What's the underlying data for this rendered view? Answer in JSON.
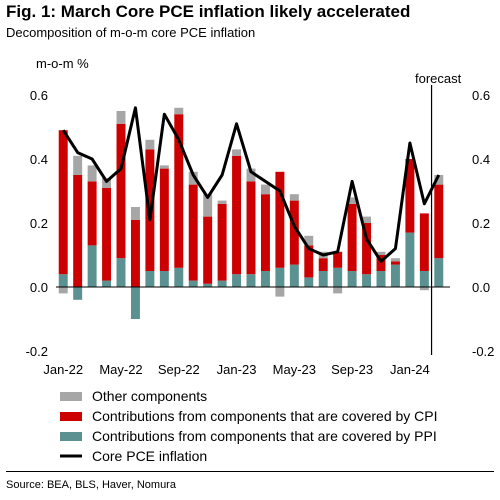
{
  "title": "Fig. 1: March Core PCE inflation likely accelerated",
  "subtitle": "Decomposition of m-o-m core PCE inflation",
  "source": "Source: BEA, BLS, Haver, Nomura",
  "colors": {
    "other": "#a6a6a6",
    "cpi": "#cc0000",
    "ppi": "#5b9191",
    "line": "#000000"
  },
  "chart_data": {
    "type": "bar",
    "stacked": true,
    "ylabel": "m-o-m %",
    "ylim": [
      -0.2,
      0.6
    ],
    "yticks": [
      "-0.2",
      "0.0",
      "0.2",
      "0.4",
      "0.6"
    ],
    "categories": [
      "Jan-22",
      "Feb-22",
      "Mar-22",
      "Apr-22",
      "May-22",
      "Jun-22",
      "Jul-22",
      "Aug-22",
      "Sep-22",
      "Oct-22",
      "Nov-22",
      "Dec-22",
      "Jan-23",
      "Feb-23",
      "Mar-23",
      "Apr-23",
      "May-23",
      "Jun-23",
      "Jul-23",
      "Aug-23",
      "Sep-23",
      "Oct-23",
      "Nov-23",
      "Dec-23",
      "Jan-24",
      "Feb-24",
      "Mar-24"
    ],
    "xtick_labels": [
      "Jan-22",
      "May-22",
      "Sep-22",
      "Jan-23",
      "May-23",
      "Sep-23",
      "Jan-24"
    ],
    "series": [
      {
        "name": "Other components",
        "kind": "bar",
        "values": [
          -0.02,
          0.06,
          0.05,
          0.03,
          0.04,
          0.04,
          0.03,
          0.01,
          0.02,
          0.04,
          0.07,
          0.01,
          0.02,
          0.04,
          0.03,
          -0.03,
          0.02,
          0.03,
          0.02,
          -0.02,
          0.02,
          0.02,
          0.01,
          0.01,
          0.0,
          -0.01,
          0.03
        ]
      },
      {
        "name": "Contributions from components that are covered by CPI",
        "kind": "bar",
        "values": [
          0.45,
          0.35,
          0.2,
          0.29,
          0.42,
          0.21,
          0.38,
          0.32,
          0.48,
          0.3,
          0.21,
          0.24,
          0.37,
          0.29,
          0.24,
          0.3,
          0.2,
          0.1,
          0.04,
          0.05,
          0.21,
          0.16,
          0.05,
          0.01,
          0.23,
          0.18,
          0.23
        ]
      },
      {
        "name": "Contributions from components that are covered by PPI",
        "kind": "bar",
        "values": [
          0.04,
          -0.04,
          0.13,
          0.02,
          0.09,
          -0.1,
          0.05,
          0.05,
          0.06,
          0.02,
          0.01,
          0.02,
          0.04,
          0.04,
          0.05,
          0.06,
          0.07,
          0.03,
          0.05,
          0.06,
          0.05,
          0.04,
          0.05,
          0.07,
          0.17,
          0.05,
          0.09
        ]
      },
      {
        "name": "Core PCE inflation",
        "kind": "line",
        "values": [
          0.49,
          0.42,
          0.4,
          0.33,
          0.37,
          0.56,
          0.21,
          0.54,
          0.46,
          0.35,
          0.28,
          0.35,
          0.51,
          0.36,
          0.33,
          0.3,
          0.19,
          0.12,
          0.1,
          0.11,
          0.33,
          0.15,
          0.08,
          0.12,
          0.45,
          0.26,
          0.35
        ]
      }
    ],
    "annotations": [
      {
        "text": "forecast",
        "at": "Mar-24"
      }
    ],
    "grid": false,
    "legend_position": "bottom"
  }
}
